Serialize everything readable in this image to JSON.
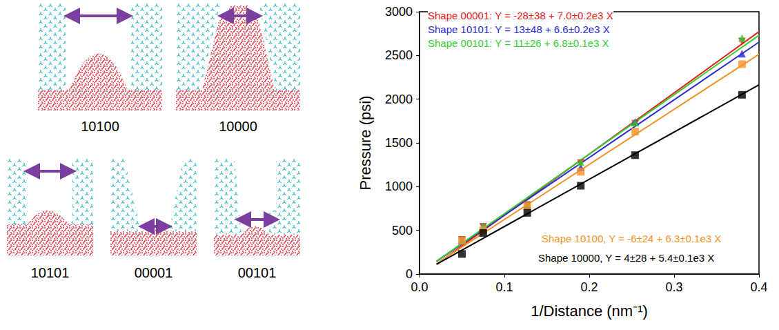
{
  "shapes": [
    "10100",
    "10000",
    "10101",
    "00001",
    "00101"
  ],
  "chart_data": {
    "type": "scatter",
    "xlabel": "1/Distance (nm⁻¹)",
    "ylabel": "Pressure (psi)",
    "xlim": [
      0,
      0.4
    ],
    "ylim": [
      0,
      3000
    ],
    "xticks": [
      {
        "value": 0,
        "label": "0.0"
      },
      0.1,
      0.2,
      0.3,
      0.4
    ],
    "yticks": [
      0,
      500,
      1000,
      1500,
      2000,
      2500,
      3000
    ],
    "grid": false,
    "x": [
      0.05,
      0.075,
      0.127,
      0.19,
      0.254,
      0.38
    ],
    "series": [
      {
        "annotation": "Shape 00001: Y = -28±38 + 7.0±0.2e3 X",
        "color": "#e8201a",
        "marker": "triangle_down",
        "values": [
          390,
          540,
          790,
          1270,
          1720,
          2660
        ],
        "fit": {
          "x": [
            0.02,
            0.4
          ],
          "values": [
            112,
            2772
          ]
        }
      },
      {
        "annotation": "Shape 10101: Y = 13±48 + 6.6±0.2e3 X",
        "color": "#2a2ad6",
        "marker": "triangle",
        "values": [
          380,
          530,
          780,
          1220,
          1740,
          2520
        ],
        "fit": {
          "x": [
            0.02,
            0.4
          ],
          "values": [
            145,
            2653
          ]
        }
      },
      {
        "annotation": "Shape 00101: Y = 11±26 + 6.8±0.1e3 X",
        "color": "#33cc33",
        "marker": "triangle",
        "values": [
          390,
          550,
          800,
          1280,
          1730,
          2700
        ],
        "fit": {
          "x": [
            0.02,
            0.4
          ],
          "values": [
            147,
            2731
          ]
        }
      },
      {
        "annotation": "Shape 10100, Y = -6±24 + 6.3±0.1e3 X",
        "color": "#f5922a",
        "marker": "square",
        "values": [
          380,
          500,
          780,
          1170,
          1630,
          2400
        ],
        "fit": {
          "x": [
            0.02,
            0.4
          ],
          "values": [
            120,
            2514
          ]
        }
      },
      {
        "annotation": "Shape 10000, Y = 4±28 + 5.4±0.1e3 X",
        "color": "#000000",
        "marker": "square",
        "values": [
          230,
          470,
          700,
          1010,
          1360,
          2050
        ],
        "fit": {
          "x": [
            0.02,
            0.4
          ],
          "values": [
            112,
            2164
          ]
        }
      }
    ]
  }
}
